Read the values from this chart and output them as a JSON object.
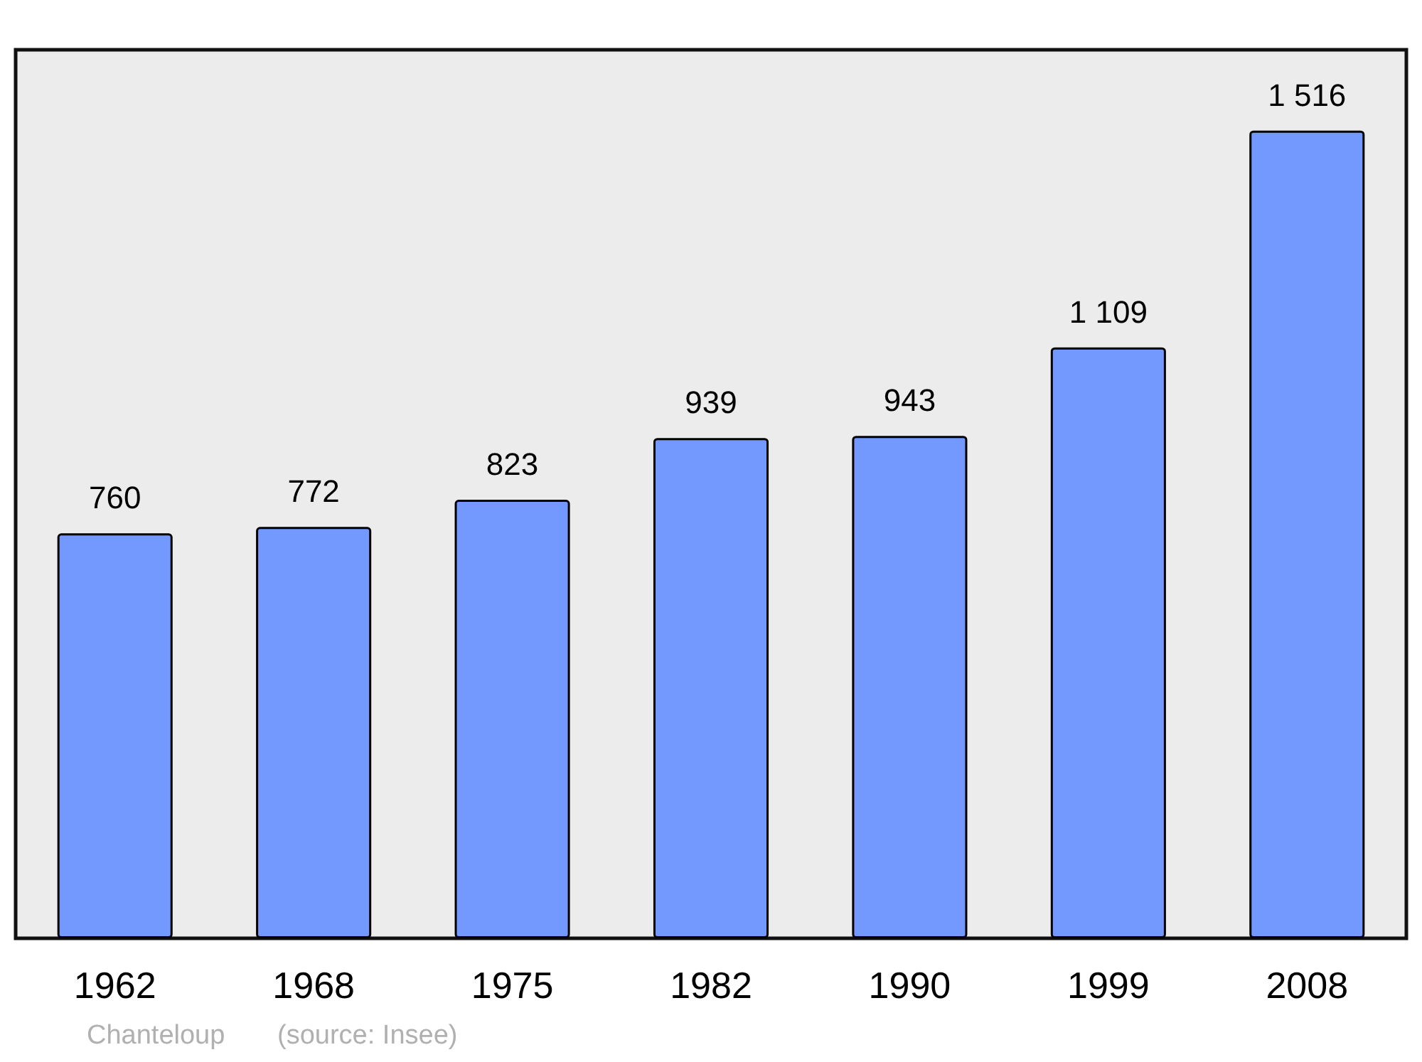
{
  "chart_data": {
    "type": "bar",
    "categories": [
      "1962",
      "1968",
      "1975",
      "1982",
      "1990",
      "1999",
      "2008"
    ],
    "values": [
      760,
      772,
      823,
      939,
      943,
      1109,
      1516
    ],
    "value_labels": [
      "760",
      "772",
      "823",
      "939",
      "943",
      "1 109",
      "1 516"
    ],
    "color": "#7399ff",
    "annotations": [
      "Chanteloup",
      "(source: Insee)"
    ]
  }
}
